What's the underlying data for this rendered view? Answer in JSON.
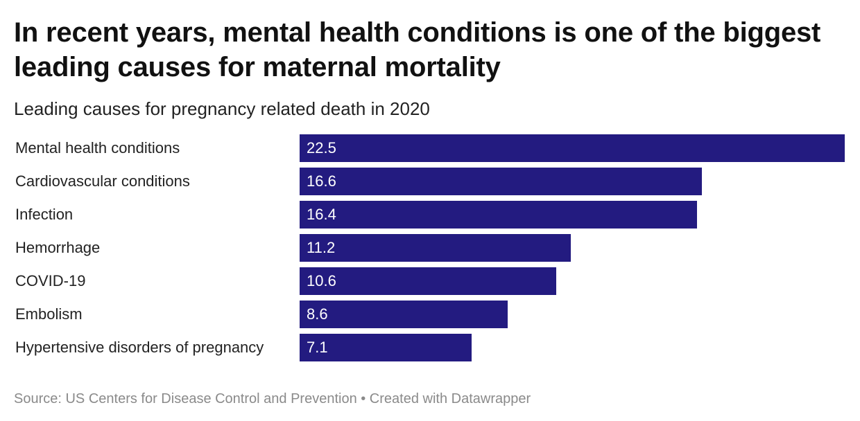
{
  "header": {
    "title": "In recent years, mental health conditions is one of the biggest leading causes for maternal mortality",
    "subtitle": "Leading causes for pregnancy related death in 2020"
  },
  "footer": {
    "source": "Source: US Centers for Disease Control and Prevention • Created with Datawrapper"
  },
  "colors": {
    "bar": "#231b80",
    "bar_text": "#ffffff"
  },
  "chart_data": {
    "type": "bar",
    "orientation": "horizontal",
    "title": "In recent years, mental health conditions is one of the biggest leading causes for maternal mortality",
    "subtitle": "Leading causes for pregnancy related death in 2020",
    "xlabel": "",
    "ylabel": "",
    "xlim": [
      0,
      22.5
    ],
    "grid": false,
    "categories": [
      "Mental health conditions",
      "Cardiovascular conditions",
      "Infection",
      "Hemorrhage",
      "COVID-19",
      "Embolism",
      "Hypertensive disorders of pregnancy"
    ],
    "values": [
      22.5,
      16.6,
      16.4,
      11.2,
      10.6,
      8.6,
      7.1
    ],
    "value_labels": [
      "22.5",
      "16.6",
      "16.4",
      "11.2",
      "10.6",
      "8.6",
      "7.1"
    ]
  }
}
